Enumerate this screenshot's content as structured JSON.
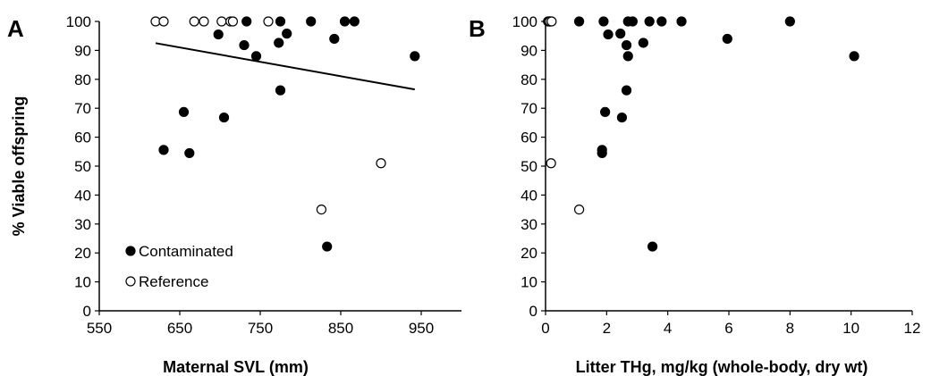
{
  "colors": {
    "contaminated": "#000000",
    "reference": "#ffffff",
    "stroke": "#000000"
  },
  "chart_data": [
    {
      "type": "scatter",
      "panel_label": "A",
      "xlabel": "Maternal SVL (mm)",
      "ylabel": "% Viable offspring",
      "xlim": [
        550,
        1000
      ],
      "ylim": [
        0,
        100
      ],
      "x_ticks": [
        "550",
        "650",
        "750",
        "850",
        "950"
      ],
      "y_ticks": [
        "0",
        "10",
        "20",
        "30",
        "40",
        "50",
        "60",
        "70",
        "80",
        "90",
        "100"
      ],
      "grid": false,
      "legend_position": "bottom-left",
      "series": [
        {
          "name": "Contaminated",
          "marker": "filled-circle",
          "points": [
            [
              733,
              100
            ],
            [
              775,
              100
            ],
            [
              813,
              100
            ],
            [
              855,
              100
            ],
            [
              867,
              100
            ],
            [
              698,
              95.5
            ],
            [
              783,
              95.8
            ],
            [
              730,
              91.8
            ],
            [
              773,
              92.6
            ],
            [
              842,
              94
            ],
            [
              745,
              88
            ],
            [
              942,
              88
            ],
            [
              775,
              76.2
            ],
            [
              655,
              68.7
            ],
            [
              705,
              66.8
            ],
            [
              630,
              55.6
            ],
            [
              662,
              54.5
            ],
            [
              833,
              22.2
            ]
          ]
        },
        {
          "name": "Reference",
          "marker": "open-circle",
          "points": [
            [
              620,
              100
            ],
            [
              630,
              100
            ],
            [
              668,
              100
            ],
            [
              680,
              100
            ],
            [
              702,
              100
            ],
            [
              713,
              100
            ],
            [
              716,
              100
            ],
            [
              760,
              100
            ],
            [
              900,
              51
            ],
            [
              826,
              35
            ]
          ]
        }
      ],
      "trendline": {
        "x": [
          620,
          942
        ],
        "y": [
          92.5,
          76.5
        ]
      }
    },
    {
      "type": "scatter",
      "panel_label": "B",
      "xlabel": "Litter THg, mg/kg (whole-body, dry wt)",
      "ylabel": "",
      "xlim": [
        0,
        12
      ],
      "ylim": [
        0,
        100
      ],
      "x_ticks": [
        "0",
        "2",
        "4",
        "6",
        "8",
        "10",
        "12"
      ],
      "y_ticks": [
        "0",
        "10",
        "20",
        "30",
        "40",
        "50",
        "60",
        "70",
        "80",
        "90",
        "100"
      ],
      "grid": false,
      "series": [
        {
          "name": "Contaminated",
          "marker": "filled-circle",
          "points": [
            [
              1.1,
              100
            ],
            [
              1.9,
              100
            ],
            [
              2.7,
              100
            ],
            [
              2.85,
              100
            ],
            [
              3.4,
              100
            ],
            [
              3.8,
              100
            ],
            [
              4.45,
              100
            ],
            [
              8.0,
              100
            ],
            [
              2.05,
              95.5
            ],
            [
              2.45,
              95.8
            ],
            [
              2.65,
              91.8
            ],
            [
              3.2,
              92.6
            ],
            [
              5.95,
              94
            ],
            [
              2.7,
              88
            ],
            [
              10.1,
              88
            ],
            [
              2.65,
              76.2
            ],
            [
              1.95,
              68.7
            ],
            [
              2.5,
              66.8
            ],
            [
              1.85,
              55.6
            ],
            [
              1.85,
              54.5
            ],
            [
              3.5,
              22.2
            ]
          ]
        },
        {
          "name": "Reference",
          "marker": "open-circle",
          "points": [
            [
              0.08,
              100
            ],
            [
              0.12,
              100
            ],
            [
              0.15,
              100
            ],
            [
              0.18,
              100
            ],
            [
              0.1,
              100
            ],
            [
              0.16,
              100
            ],
            [
              0.14,
              100
            ],
            [
              0.2,
              100
            ],
            [
              0.18,
              51
            ],
            [
              1.1,
              35
            ]
          ]
        }
      ]
    }
  ]
}
